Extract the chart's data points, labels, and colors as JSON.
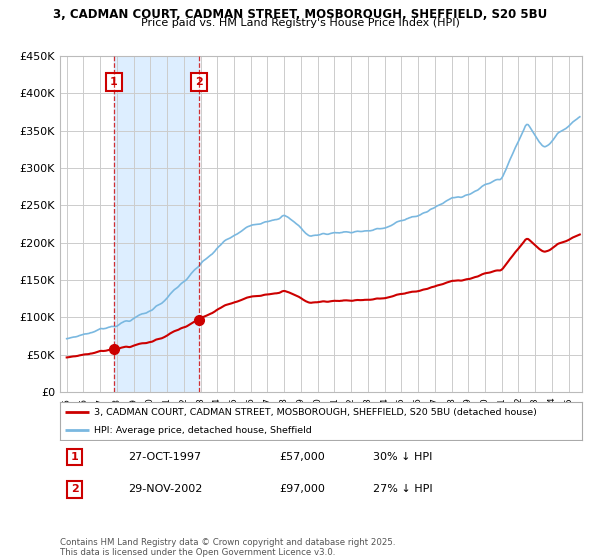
{
  "title_line1": "3, CADMAN COURT, CADMAN STREET, MOSBOROUGH, SHEFFIELD, S20 5BU",
  "title_line2": "Price paid vs. HM Land Registry's House Price Index (HPI)",
  "background_color": "#ffffff",
  "plot_bg_color": "#ffffff",
  "grid_color": "#cccccc",
  "hpi_color": "#7ab8e0",
  "price_color": "#cc0000",
  "shade_color": "#ddeeff",
  "purchase1_date": 1997.82,
  "purchase1_price": 57000,
  "purchase1_label": "1",
  "purchase2_date": 2002.91,
  "purchase2_price": 97000,
  "purchase2_label": "2",
  "legend_property": "3, CADMAN COURT, CADMAN STREET, MOSBOROUGH, SHEFFIELD, S20 5BU (detached house)",
  "legend_hpi": "HPI: Average price, detached house, Sheffield",
  "footer": "Contains HM Land Registry data © Crown copyright and database right 2025.\nThis data is licensed under the Open Government Licence v3.0.",
  "ylim_max": 450000,
  "ylim_min": 0,
  "xlim_min": 1994.6,
  "xlim_max": 2025.8
}
